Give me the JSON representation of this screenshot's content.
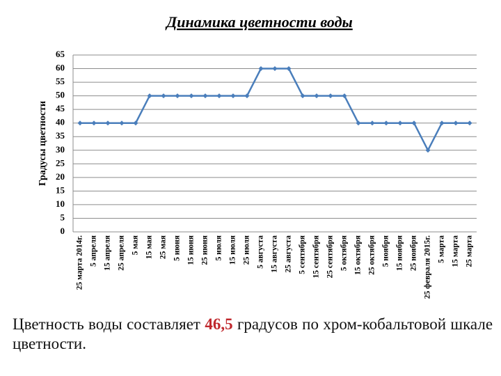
{
  "chart_data": {
    "type": "line",
    "title": "Динамика цветности воды",
    "y_label": "Градусы цветности",
    "categories": [
      "25 марта 2014г.",
      "5 апреля",
      "15 апреля",
      "25 апреля",
      "5 мая",
      "15 мая",
      "25 мая",
      "5 июня",
      "15 июня",
      "25 июня",
      "5 июля",
      "15 июля",
      "25 июля",
      "5 августа",
      "15 августа",
      "25 августа",
      "5 сентября",
      "15 сентября",
      "25 сентября",
      "5 октября",
      "15 октября",
      "25 октября",
      "5 ноября",
      "15 ноября",
      "25 ноября",
      "25 февраля 2015г.",
      "5 марта",
      "15 марта",
      "25 марта"
    ],
    "values": [
      40,
      40,
      40,
      40,
      40,
      50,
      50,
      50,
      50,
      50,
      50,
      50,
      50,
      60,
      60,
      60,
      50,
      50,
      50,
      50,
      40,
      40,
      40,
      40,
      40,
      30,
      40,
      40,
      40
    ],
    "color": "#4a7ebb",
    "ylim": [
      0,
      65
    ],
    "yticks": [
      0,
      5,
      10,
      15,
      20,
      25,
      30,
      35,
      40,
      45,
      50,
      55,
      60,
      65
    ],
    "grid": true
  },
  "caption": {
    "before": "Цветность воды составляет",
    "value": "46,5",
    "after": "градусов по хром-кобальтовой шкале цветности."
  }
}
